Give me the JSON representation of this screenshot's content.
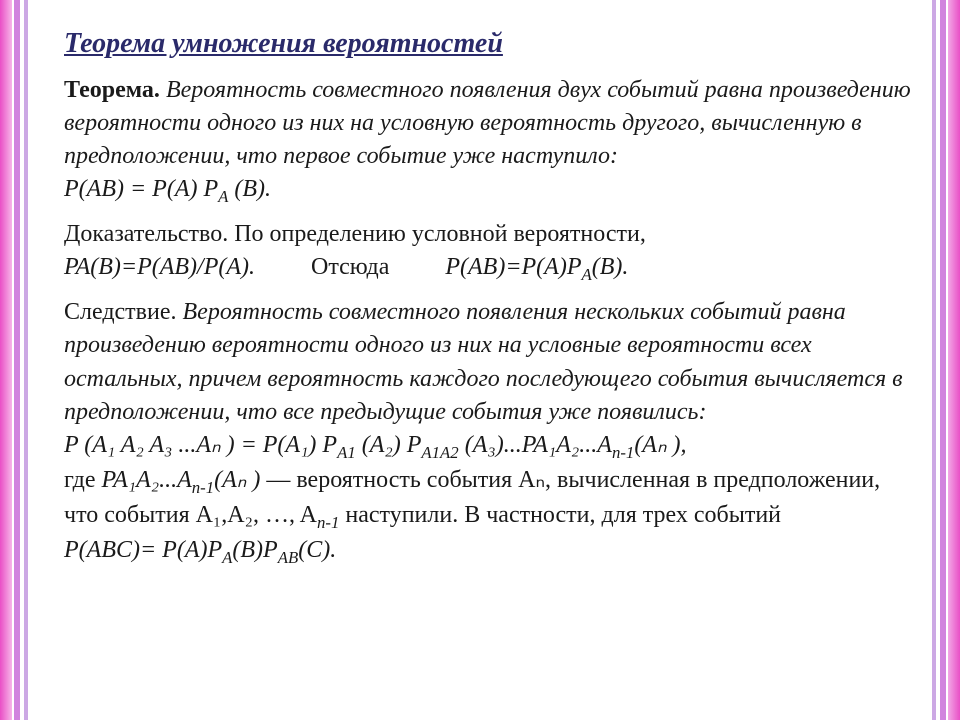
{
  "colors": {
    "background": "#ffffff",
    "title": "#2a2a6a",
    "body_text": "#1a1a1a",
    "border_primary": "#e94fc6",
    "border_secondary": "#c96fd8",
    "border_tertiary": "#9a52c9"
  },
  "typography": {
    "family": "Times New Roman",
    "title_fontsize": 28,
    "body_fontsize": 24,
    "line_height": 1.38
  },
  "title": "Теорема умножения вероятностей",
  "theorem": {
    "label": "Теорема.",
    "statement": "Вероятность совместного появления двух событий равна произведению вероятности одного из них на условную вероятность другого, вычисленную в предположении, что первое событие уже наступило:",
    "formula_prefix": "P(AB)  =   P(A) P",
    "formula_sub": "A",
    "formula_suffix": " (B)."
  },
  "proof": {
    "label": "Доказательство.",
    "text1": "По определению условной вероятности,",
    "line2a": "PA(B)=P(AB)/P(A).",
    "word_hence": "Отсюда",
    "line2b_pre": "P(AB)=P(A)P",
    "line2b_sub": "A",
    "line2b_post": "(B)."
  },
  "corollary": {
    "label": "Следствие.",
    "statement": "Вероятность совместного появления нескольких событий равна произведению вероятности одного из них на условные вероятности всех остальных, причем вероятность каждого последующего события вычисляется в предположении, что все предыдущие события уже появились:",
    "gen_lhs": "P (A₁ A₂ A₃ ...Aₙ ) = P(A₁) P",
    "gen_sub1": "A1",
    "gen_mid1": " (A₂) P",
    "gen_sub2": "A1A2",
    "gen_mid2": " (A₃)...PA₁A₂...A",
    "gen_sub3": "n-1",
    "gen_rhs": "(Aₙ ),",
    "where": "где",
    "where_expr_pre": "PA₁A₂...A",
    "where_expr_sub": "n-1",
    "where_expr_post": "(Aₙ )",
    "where_tail": " — вероятность события Aₙ, вычисленная в предположении, что события  A₁,A₂, …, A",
    "where_tail_sub": "n-1",
    "where_tail2": "  наступили. В частности, для трех событий",
    "triple_pre": "P(ABC)= P(A)P",
    "triple_sub1": "A",
    "triple_mid": "(B)P",
    "triple_sub2": "AB",
    "triple_post": "(C)."
  }
}
